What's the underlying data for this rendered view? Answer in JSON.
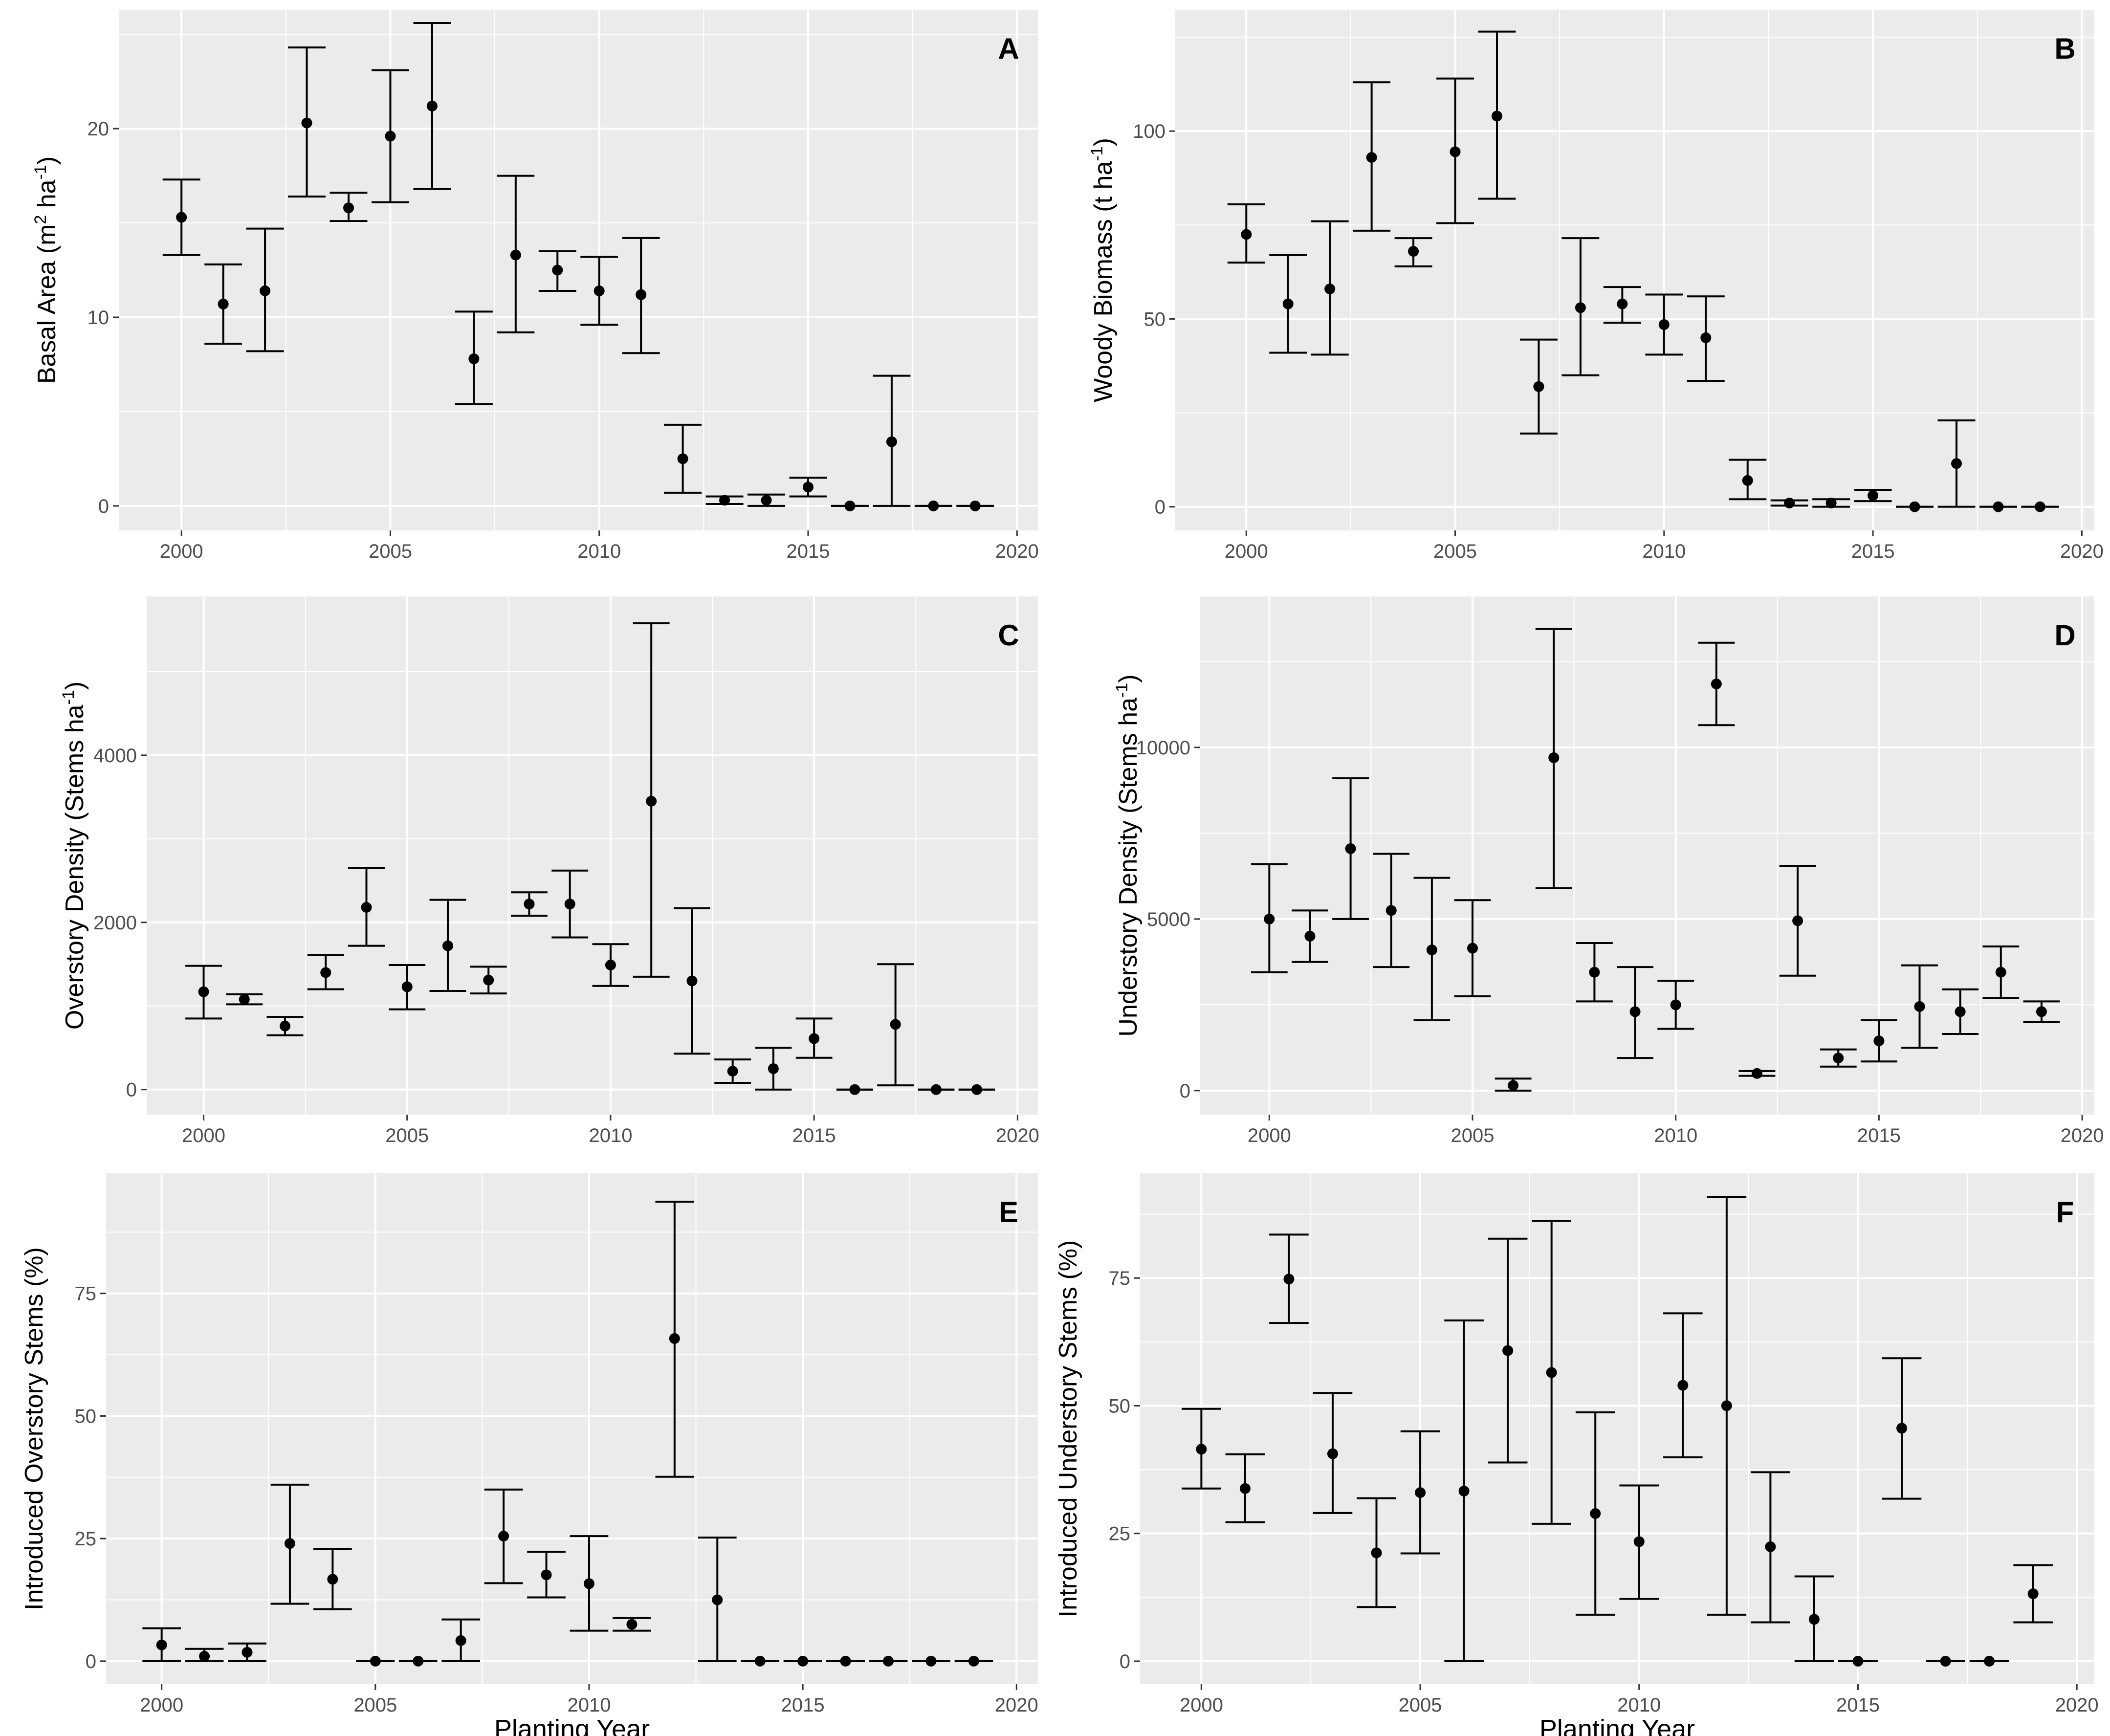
{
  "figure": {
    "x_axis_title": "Planting Year",
    "panel_color": "#EBEBEB",
    "grid_color": "#FFFFFF",
    "mark_color": "#000000"
  },
  "chart_data": [
    {
      "type": "scatter",
      "panel_label": "A",
      "ylabel_prefix": "Basal Area (m",
      "ylabel_sup1": "2",
      "ylabel_mid": " ha",
      "ylabel_sup2": "-1",
      "ylabel_suffix": ")",
      "xlim": [
        1998.5,
        2020.5
      ],
      "ylim": [
        -1.3,
        26.3
      ],
      "xticks": [
        2000,
        2005,
        2010,
        2015,
        2020
      ],
      "yticks": [
        0,
        10,
        20
      ],
      "x": [
        2000,
        2001,
        2002,
        2003,
        2004,
        2005,
        2006,
        2007,
        2008,
        2009,
        2010,
        2011,
        2012,
        2013,
        2014,
        2015,
        2016,
        2017,
        2018,
        2019
      ],
      "y": [
        15.3,
        10.7,
        11.4,
        20.3,
        15.8,
        19.6,
        21.2,
        7.8,
        13.3,
        12.5,
        11.4,
        11.2,
        2.5,
        0.3,
        0.3,
        1.0,
        0.0,
        3.4,
        0.0,
        0.0
      ],
      "ymin": [
        13.3,
        8.6,
        8.2,
        16.4,
        15.1,
        16.1,
        16.8,
        5.4,
        9.2,
        11.4,
        9.6,
        8.1,
        0.7,
        0.1,
        0.0,
        0.5,
        0.0,
        0.0,
        0.0,
        0.0
      ],
      "ymax": [
        17.3,
        12.8,
        14.7,
        24.3,
        16.6,
        23.1,
        25.6,
        10.3,
        17.5,
        13.5,
        13.2,
        14.2,
        4.3,
        0.5,
        0.6,
        1.5,
        0.0,
        6.9,
        0.0,
        0.0
      ]
    },
    {
      "type": "scatter",
      "panel_label": "B",
      "ylabel_prefix": "Woody Biomass (t ha",
      "ylabel_sup1": "",
      "ylabel_mid": "",
      "ylabel_sup2": "-1",
      "ylabel_suffix": ")",
      "xlim": [
        1998.3,
        2020.3
      ],
      "ylim": [
        -6.3,
        132.3
      ],
      "xticks": [
        2000,
        2005,
        2010,
        2015,
        2020
      ],
      "yticks": [
        0,
        50,
        100
      ],
      "x": [
        2000,
        2001,
        2002,
        2003,
        2004,
        2005,
        2006,
        2007,
        2008,
        2009,
        2010,
        2011,
        2012,
        2013,
        2014,
        2015,
        2016,
        2017,
        2018,
        2019
      ],
      "y": [
        72.5,
        54.0,
        58.0,
        93.0,
        68.0,
        94.5,
        104.0,
        32.0,
        53.0,
        54.0,
        48.5,
        45.0,
        7.0,
        1.0,
        1.0,
        3.0,
        0.0,
        11.5,
        0.0,
        0.0
      ],
      "ymin": [
        65.0,
        41.0,
        40.5,
        73.5,
        64.0,
        75.5,
        82.0,
        19.5,
        35.0,
        49.0,
        40.5,
        33.5,
        2.0,
        0.3,
        0.0,
        1.5,
        0.0,
        0.0,
        0.0,
        0.0
      ],
      "ymax": [
        80.5,
        67.0,
        76.0,
        113.0,
        71.5,
        114.0,
        126.5,
        44.5,
        71.5,
        58.5,
        56.5,
        56.0,
        12.5,
        1.7,
        2.0,
        4.5,
        0.0,
        23.0,
        0.0,
        0.0
      ]
    },
    {
      "type": "scatter",
      "panel_label": "C",
      "ylabel_prefix": "Overstory Density (Stems ha",
      "ylabel_sup1": "",
      "ylabel_mid": "",
      "ylabel_sup2": "-1",
      "ylabel_suffix": ")",
      "xlim": [
        1998.6,
        2020.5
      ],
      "ylim": [
        -300,
        5900
      ],
      "xticks": [
        2000,
        2005,
        2010,
        2015,
        2020
      ],
      "yticks": [
        0,
        2000,
        4000
      ],
      "x": [
        2000,
        2001,
        2002,
        2003,
        2004,
        2005,
        2006,
        2007,
        2008,
        2009,
        2010,
        2011,
        2012,
        2013,
        2014,
        2015,
        2016,
        2017,
        2018,
        2019
      ],
      "y": [
        1170,
        1080,
        760,
        1400,
        2180,
        1230,
        1720,
        1310,
        2220,
        2220,
        1490,
        3450,
        1300,
        220,
        250,
        610,
        0,
        780,
        0,
        0
      ],
      "ymin": [
        850,
        1020,
        650,
        1200,
        1720,
        960,
        1180,
        1150,
        2080,
        1820,
        1240,
        1350,
        430,
        80,
        0,
        380,
        0,
        50,
        0,
        0
      ],
      "ymax": [
        1480,
        1140,
        870,
        1610,
        2650,
        1490,
        2270,
        1470,
        2360,
        2620,
        1740,
        5580,
        2170,
        360,
        500,
        850,
        0,
        1500,
        0,
        0
      ]
    },
    {
      "type": "scatter",
      "panel_label": "D",
      "ylabel_prefix": "Understory Density (Stems ha",
      "ylabel_sup1": "",
      "ylabel_mid": "",
      "ylabel_sup2": "-1",
      "ylabel_suffix": ")",
      "xlim": [
        1998.3,
        2020.3
      ],
      "ylim": [
        -700,
        14400
      ],
      "xticks": [
        2000,
        2005,
        2010,
        2015,
        2020
      ],
      "yticks": [
        0,
        5000,
        10000
      ],
      "x": [
        2000,
        2001,
        2002,
        2003,
        2004,
        2005,
        2006,
        2007,
        2008,
        2009,
        2010,
        2011,
        2012,
        2013,
        2014,
        2015,
        2016,
        2017,
        2018,
        2019
      ],
      "y": [
        5000,
        4500,
        7050,
        5250,
        4100,
        4150,
        150,
        9700,
        3450,
        2300,
        2500,
        11850,
        500,
        4950,
        950,
        1450,
        2450,
        2300,
        3450,
        2300
      ],
      "ymin": [
        3450,
        3750,
        5000,
        3600,
        2050,
        2750,
        0,
        5900,
        2600,
        950,
        1800,
        10650,
        430,
        3350,
        700,
        850,
        1250,
        1650,
        2700,
        2000
      ],
      "ymax": [
        6600,
        5250,
        9100,
        6900,
        6200,
        5550,
        350,
        13450,
        4300,
        3600,
        3200,
        13050,
        570,
        6550,
        1200,
        2050,
        3650,
        2950,
        4200,
        2600
      ]
    },
    {
      "type": "scatter",
      "panel_label": "E",
      "ylabel_prefix": "Introduced Overstory Stems (%)",
      "ylabel_sup1": "",
      "ylabel_mid": "",
      "ylabel_sup2": "",
      "ylabel_suffix": "",
      "xlim": [
        1998.7,
        2020.5
      ],
      "ylim": [
        -4.7,
        99.5
      ],
      "xticks": [
        2000,
        2005,
        2010,
        2015,
        2020
      ],
      "yticks": [
        0,
        25,
        50,
        75
      ],
      "x": [
        2000,
        2001,
        2002,
        2003,
        2004,
        2005,
        2006,
        2007,
        2008,
        2009,
        2010,
        2011,
        2012,
        2013,
        2014,
        2015,
        2016,
        2017,
        2018,
        2019
      ],
      "y": [
        3.3,
        1.0,
        1.8,
        24.0,
        16.7,
        0.0,
        0.0,
        4.2,
        25.5,
        17.6,
        15.8,
        7.5,
        65.8,
        12.5,
        0.0,
        0.0,
        0.0,
        0.0,
        0.0,
        0.0
      ],
      "ymin": [
        0.0,
        0.0,
        0.0,
        11.7,
        10.6,
        0.0,
        0.0,
        0.0,
        15.9,
        13.0,
        6.2,
        6.2,
        37.6,
        0.0,
        0.0,
        0.0,
        0.0,
        0.0,
        0.0,
        0.0
      ],
      "ymax": [
        6.7,
        2.5,
        3.6,
        36.0,
        22.9,
        0.0,
        0.0,
        8.5,
        35.0,
        22.3,
        25.5,
        8.8,
        93.7,
        25.2,
        0.0,
        0.0,
        0.0,
        0.0,
        0.0,
        0.0
      ]
    },
    {
      "type": "scatter",
      "panel_label": "F",
      "ylabel_prefix": "Introduced Understory Stems (%)",
      "ylabel_sup1": "",
      "ylabel_mid": "",
      "ylabel_sup2": "",
      "ylabel_suffix": "",
      "xlim": [
        1998.6,
        2020.4
      ],
      "ylim": [
        -4.5,
        95.5
      ],
      "xticks": [
        2000,
        2005,
        2010,
        2015,
        2020
      ],
      "yticks": [
        0,
        25,
        50,
        75
      ],
      "x": [
        2000,
        2001,
        2002,
        2003,
        2004,
        2005,
        2006,
        2007,
        2008,
        2009,
        2010,
        2011,
        2012,
        2013,
        2014,
        2015,
        2016,
        2017,
        2018,
        2019
      ],
      "y": [
        41.5,
        33.8,
        74.8,
        40.6,
        21.2,
        33.0,
        33.3,
        60.8,
        56.5,
        28.9,
        23.4,
        54.0,
        50.0,
        22.4,
        8.2,
        0.0,
        45.6,
        0.0,
        0.0,
        13.2
      ],
      "ymin": [
        33.8,
        27.2,
        66.2,
        29.0,
        10.6,
        21.1,
        0.0,
        38.9,
        26.9,
        9.1,
        12.2,
        39.9,
        9.1,
        7.6,
        0.0,
        0.0,
        31.8,
        0.0,
        0.0,
        7.6
      ],
      "ymax": [
        49.4,
        40.5,
        83.5,
        52.5,
        31.9,
        45.0,
        66.7,
        82.7,
        86.2,
        48.7,
        34.4,
        68.1,
        90.9,
        37.0,
        16.6,
        0.0,
        59.3,
        0.0,
        0.0,
        18.8
      ]
    }
  ]
}
